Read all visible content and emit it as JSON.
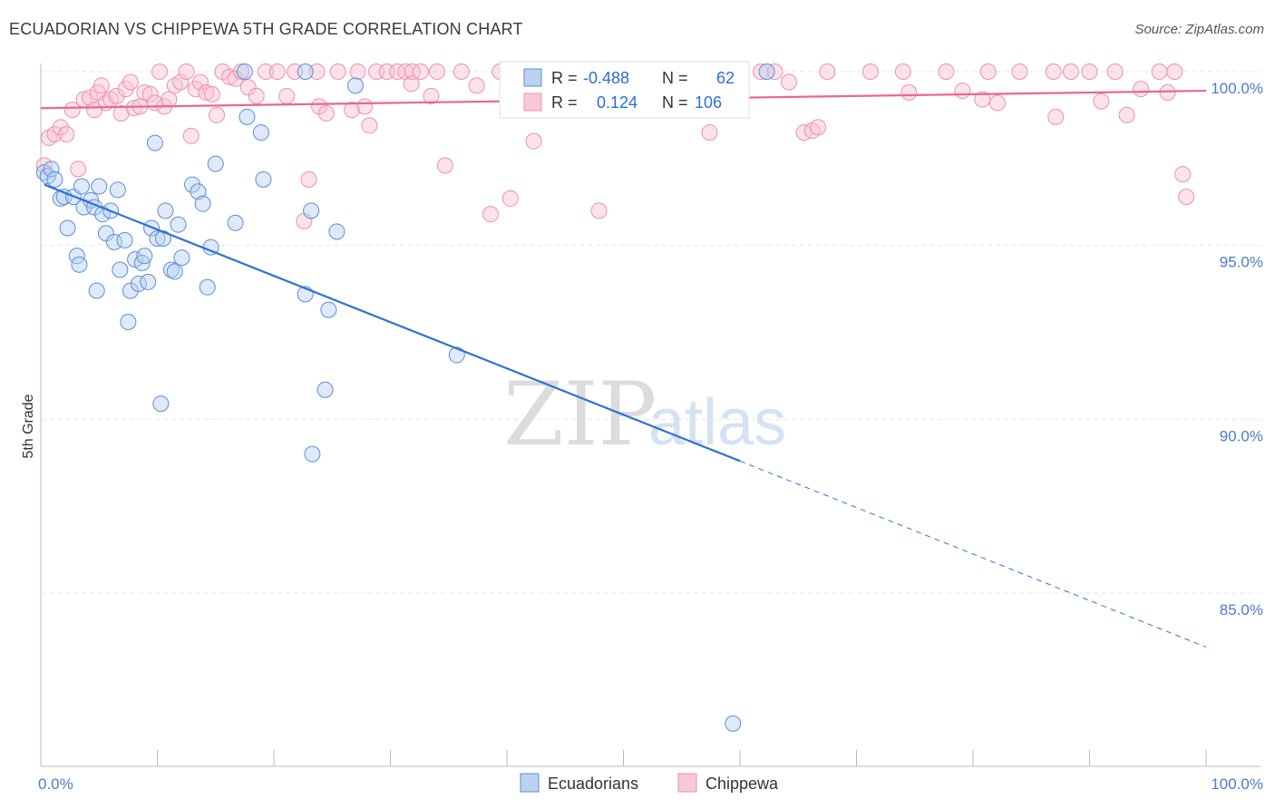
{
  "title": "ECUADORIAN VS CHIPPEWA 5TH GRADE CORRELATION CHART",
  "source": "Source: ZipAtlas.com",
  "colors": {
    "blue": "#5b8fd6",
    "blue_line": "#2f72d4",
    "pink": "#ee8fae",
    "pink_line": "#e8688f",
    "tick": "#4a7cc9"
  },
  "watermark": {
    "zip": "ZIP",
    "atlas": "atlas"
  },
  "chart_data": {
    "type": "scatter",
    "xlabel": "",
    "ylabel": "5th Grade",
    "xlim": [
      0,
      100
    ],
    "ylim": [
      80.5,
      100.8
    ],
    "x_tick_labels": [
      {
        "value": 0,
        "label": "0.0%"
      },
      {
        "value": 100,
        "label": "100.0%"
      }
    ],
    "y_ticks": [
      {
        "value": 100,
        "label": "100.0%"
      },
      {
        "value": 95,
        "label": "95.0%"
      },
      {
        "value": 90,
        "label": "90.0%"
      },
      {
        "value": 85,
        "label": "85.0%"
      }
    ],
    "legend_stats": [
      {
        "r_label": "R =",
        "r": "-0.488",
        "n_label": "N =",
        "n": "62"
      },
      {
        "r_label": "R =",
        "r": "0.124",
        "n_label": "N =",
        "n": "106"
      }
    ],
    "series": [
      {
        "name": "Ecuadorians",
        "color": "#5b8fd6",
        "trend": {
          "x0": 0.3,
          "y0": 96.75,
          "x1": 60,
          "y1": 88.8,
          "dash_to_x": 100,
          "dash_to_y": 83.45
        },
        "points": [
          [
            0.3,
            97.1
          ],
          [
            0.6,
            97.0
          ],
          [
            0.9,
            97.2
          ],
          [
            1.2,
            96.9
          ],
          [
            1.7,
            96.35
          ],
          [
            2.0,
            96.4
          ],
          [
            2.3,
            95.5
          ],
          [
            2.8,
            96.4
          ],
          [
            3.1,
            94.7
          ],
          [
            3.3,
            94.45
          ],
          [
            3.5,
            96.7
          ],
          [
            3.7,
            96.1
          ],
          [
            4.3,
            96.3
          ],
          [
            4.6,
            96.1
          ],
          [
            4.8,
            93.7
          ],
          [
            5.0,
            96.7
          ],
          [
            5.3,
            95.9
          ],
          [
            5.6,
            95.35
          ],
          [
            6.0,
            96.0
          ],
          [
            6.3,
            95.1
          ],
          [
            6.6,
            96.6
          ],
          [
            6.8,
            94.3
          ],
          [
            7.2,
            95.15
          ],
          [
            7.5,
            92.8
          ],
          [
            7.7,
            93.7
          ],
          [
            8.1,
            94.6
          ],
          [
            8.4,
            93.9
          ],
          [
            8.7,
            94.5
          ],
          [
            8.9,
            94.7
          ],
          [
            9.2,
            93.95
          ],
          [
            9.5,
            95.5
          ],
          [
            9.8,
            97.95
          ],
          [
            10.0,
            95.2
          ],
          [
            10.3,
            90.45
          ],
          [
            10.5,
            95.2
          ],
          [
            10.7,
            96.0
          ],
          [
            11.2,
            94.3
          ],
          [
            11.5,
            94.25
          ],
          [
            11.8,
            95.6
          ],
          [
            12.1,
            94.65
          ],
          [
            13.0,
            96.75
          ],
          [
            13.5,
            96.55
          ],
          [
            13.9,
            96.2
          ],
          [
            14.3,
            93.8
          ],
          [
            14.6,
            94.95
          ],
          [
            15.0,
            97.35
          ],
          [
            16.7,
            95.65
          ],
          [
            17.5,
            100.0
          ],
          [
            17.7,
            98.7
          ],
          [
            18.9,
            98.25
          ],
          [
            19.1,
            96.9
          ],
          [
            22.7,
            100.0
          ],
          [
            22.7,
            93.6
          ],
          [
            23.2,
            96.0
          ],
          [
            23.3,
            89.0
          ],
          [
            24.4,
            90.85
          ],
          [
            24.7,
            93.15
          ],
          [
            25.4,
            95.4
          ],
          [
            27.0,
            99.6
          ],
          [
            35.7,
            91.85
          ],
          [
            59.4,
            81.25
          ],
          [
            62.3,
            100.0
          ]
        ]
      },
      {
        "name": "Chippewa",
        "color": "#ee8fae",
        "trend": {
          "x0": 0,
          "y0": 98.95,
          "x1": 100,
          "y1": 99.45
        },
        "points": [
          [
            0.3,
            97.3
          ],
          [
            0.7,
            98.1
          ],
          [
            1.2,
            98.2
          ],
          [
            1.7,
            98.4
          ],
          [
            2.2,
            98.2
          ],
          [
            2.7,
            98.9
          ],
          [
            3.2,
            97.2
          ],
          [
            3.7,
            99.2
          ],
          [
            4.2,
            99.25
          ],
          [
            4.6,
            98.9
          ],
          [
            4.9,
            99.4
          ],
          [
            5.2,
            99.6
          ],
          [
            5.6,
            99.1
          ],
          [
            6.0,
            99.2
          ],
          [
            6.5,
            99.3
          ],
          [
            6.9,
            98.8
          ],
          [
            7.3,
            99.5
          ],
          [
            7.7,
            99.7
          ],
          [
            8.0,
            98.95
          ],
          [
            8.5,
            99.0
          ],
          [
            8.9,
            99.4
          ],
          [
            9.4,
            99.35
          ],
          [
            9.8,
            99.1
          ],
          [
            10.2,
            100.0
          ],
          [
            10.6,
            99.0
          ],
          [
            11.0,
            99.2
          ],
          [
            11.5,
            99.6
          ],
          [
            12.0,
            99.7
          ],
          [
            12.5,
            100.0
          ],
          [
            12.9,
            98.15
          ],
          [
            13.3,
            99.5
          ],
          [
            13.7,
            99.7
          ],
          [
            14.2,
            99.4
          ],
          [
            14.7,
            99.35
          ],
          [
            15.1,
            98.75
          ],
          [
            15.6,
            100.0
          ],
          [
            16.2,
            99.85
          ],
          [
            16.7,
            99.8
          ],
          [
            17.2,
            100.0
          ],
          [
            17.8,
            99.55
          ],
          [
            18.5,
            99.3
          ],
          [
            19.3,
            100.0
          ],
          [
            20.3,
            100.0
          ],
          [
            21.1,
            99.3
          ],
          [
            21.8,
            100.0
          ],
          [
            22.6,
            95.7
          ],
          [
            23.0,
            96.9
          ],
          [
            23.7,
            100.0
          ],
          [
            23.9,
            99.0
          ],
          [
            24.5,
            98.8
          ],
          [
            25.5,
            100.0
          ],
          [
            26.7,
            98.9
          ],
          [
            27.2,
            100.0
          ],
          [
            27.8,
            99.0
          ],
          [
            28.2,
            98.45
          ],
          [
            28.8,
            100.0
          ],
          [
            29.7,
            100.0
          ],
          [
            30.6,
            100.0
          ],
          [
            31.3,
            100.0
          ],
          [
            31.8,
            99.65
          ],
          [
            31.9,
            100.0
          ],
          [
            32.6,
            100.0
          ],
          [
            33.5,
            99.3
          ],
          [
            34.0,
            100.0
          ],
          [
            34.7,
            97.3
          ],
          [
            36.1,
            100.0
          ],
          [
            37.4,
            99.6
          ],
          [
            38.6,
            95.9
          ],
          [
            39.4,
            100.0
          ],
          [
            40.3,
            96.35
          ],
          [
            40.5,
            100.0
          ],
          [
            42.3,
            98.0
          ],
          [
            43.5,
            100.0
          ],
          [
            45.1,
            100.0
          ],
          [
            47.9,
            96.0
          ],
          [
            48.6,
            100.0
          ],
          [
            52.3,
            100.0
          ],
          [
            55.6,
            100.0
          ],
          [
            57.4,
            98.25
          ],
          [
            61.8,
            100.0
          ],
          [
            63.0,
            100.0
          ],
          [
            64.2,
            99.7
          ],
          [
            65.5,
            98.25
          ],
          [
            66.2,
            98.3
          ],
          [
            66.7,
            98.4
          ],
          [
            67.5,
            100.0
          ],
          [
            71.2,
            100.0
          ],
          [
            74.0,
            100.0
          ],
          [
            74.5,
            99.4
          ],
          [
            77.7,
            100.0
          ],
          [
            79.1,
            99.45
          ],
          [
            80.8,
            99.2
          ],
          [
            81.3,
            100.0
          ],
          [
            82.1,
            99.1
          ],
          [
            84.0,
            100.0
          ],
          [
            86.9,
            100.0
          ],
          [
            87.1,
            98.7
          ],
          [
            88.4,
            100.0
          ],
          [
            90.0,
            100.0
          ],
          [
            91.0,
            99.15
          ],
          [
            92.2,
            100.0
          ],
          [
            93.2,
            98.75
          ],
          [
            94.4,
            99.5
          ],
          [
            96.0,
            100.0
          ],
          [
            96.7,
            99.4
          ],
          [
            97.3,
            100.0
          ],
          [
            98.0,
            97.05
          ],
          [
            98.3,
            96.4
          ]
        ]
      }
    ]
  }
}
